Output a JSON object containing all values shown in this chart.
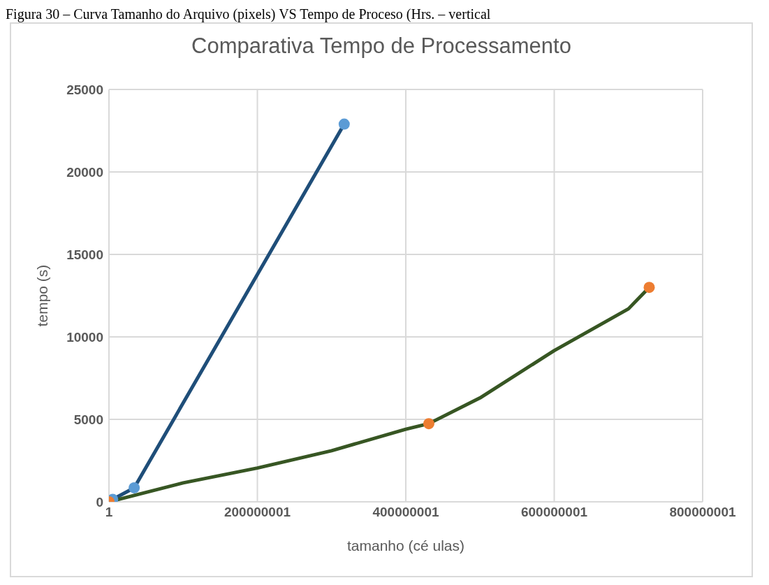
{
  "chart_data": {
    "type": "scatter",
    "title": "Comparativa Tempo de Processamento",
    "xlabel": "tamanho (cé ulas)",
    "ylabel": "tempo (s)",
    "annotations": [
      "Figura 30 – Curva Tamanho do Arquivo (pixels) VS Tempo de Proceso (Hrs. – vertical"
    ],
    "series": [
      {
        "type": "line",
        "marker": "none",
        "color": "#1f4e79",
        "x": [
          1,
          5000000,
          34000000,
          317000000
        ],
        "values": [
          0,
          150,
          850,
          22900
        ]
      },
      {
        "type": "line",
        "marker": "none",
        "color": "#375623",
        "x": [
          1,
          100000000,
          200000000,
          300000000,
          400000000,
          431000000,
          500000000,
          600000000,
          700000000,
          728000000
        ],
        "values": [
          0,
          1150,
          2050,
          3100,
          4400,
          4740,
          6300,
          9170,
          11700,
          13000
        ]
      },
      {
        "color": "#5b9bd5",
        "x": [
          5000000,
          34000000,
          317000000
        ],
        "values": [
          150,
          850,
          22900
        ]
      },
      {
        "color": "#ed7d31",
        "x": [
          1,
          431000000,
          728000000
        ],
        "values": [
          0,
          4740,
          13000
        ]
      }
    ],
    "xlim": [
      1,
      800000001
    ],
    "xticks": [
      1,
      200000001,
      400000001,
      600000001,
      800000001
    ],
    "ylim": [
      0,
      25000
    ],
    "yticks": [
      0,
      5000,
      10000,
      15000,
      20000,
      25000
    ],
    "grid": true,
    "marker": "circle"
  }
}
